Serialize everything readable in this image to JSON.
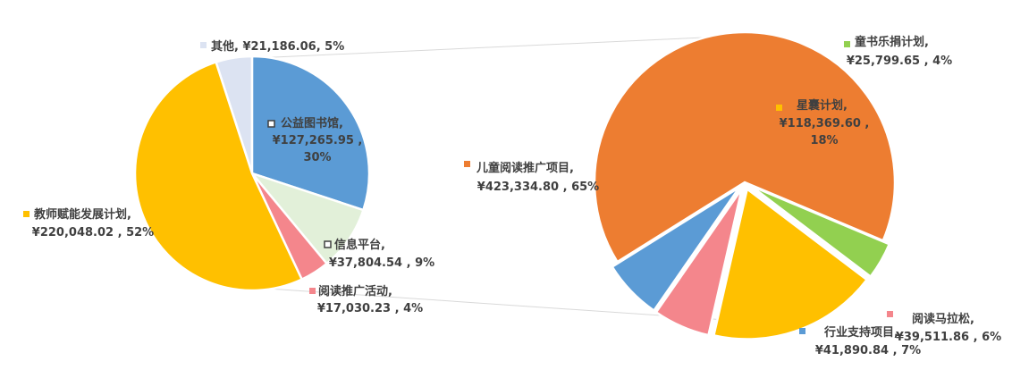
{
  "chart_data": [
    {
      "type": "pie",
      "title": "",
      "slices": [
        {
          "name": "其他",
          "value": 21186.06,
          "value_label": "¥21,186.06",
          "percent": "5%",
          "color": "#DCE3F2"
        },
        {
          "name": "公益图书馆",
          "value": 127265.95,
          "value_label": "¥127,265.95",
          "percent": "30%",
          "color": "#5B9BD5"
        },
        {
          "name": "信息平台",
          "value": 37804.54,
          "value_label": "¥37,804.54",
          "percent": "9%",
          "color": "#E2F0D9"
        },
        {
          "name": "阅读推广活动",
          "value": 17030.23,
          "value_label": "¥17,030.23",
          "percent": "4%",
          "color": "#F4868C"
        },
        {
          "name": "教师赋能发展计划",
          "value": 220048.02,
          "value_label": "¥220,048.02",
          "percent": "52%",
          "color": "#FFC000"
        }
      ]
    },
    {
      "type": "pie",
      "title": "",
      "slices": [
        {
          "name": "儿童阅读推广项目",
          "value": 423334.8,
          "value_label": "¥423,334.80",
          "percent": "65%",
          "color": "#ED7D31"
        },
        {
          "name": "童书乐捐计划",
          "value": 25799.65,
          "value_label": "¥25,799.65",
          "percent": "4%",
          "color": "#92D050"
        },
        {
          "name": "星囊计划",
          "value": 118369.6,
          "value_label": "¥118,369.60",
          "percent": "18%",
          "color": "#FFC000"
        },
        {
          "name": "阅读马拉松",
          "value": 39511.86,
          "value_label": "¥39,511.86",
          "percent": "6%",
          "color": "#F4868C"
        },
        {
          "name": "行业支持项目",
          "value": 41890.84,
          "value_label": "¥41,890.84",
          "percent": "7%",
          "color": "#5B9BD5"
        }
      ]
    }
  ]
}
